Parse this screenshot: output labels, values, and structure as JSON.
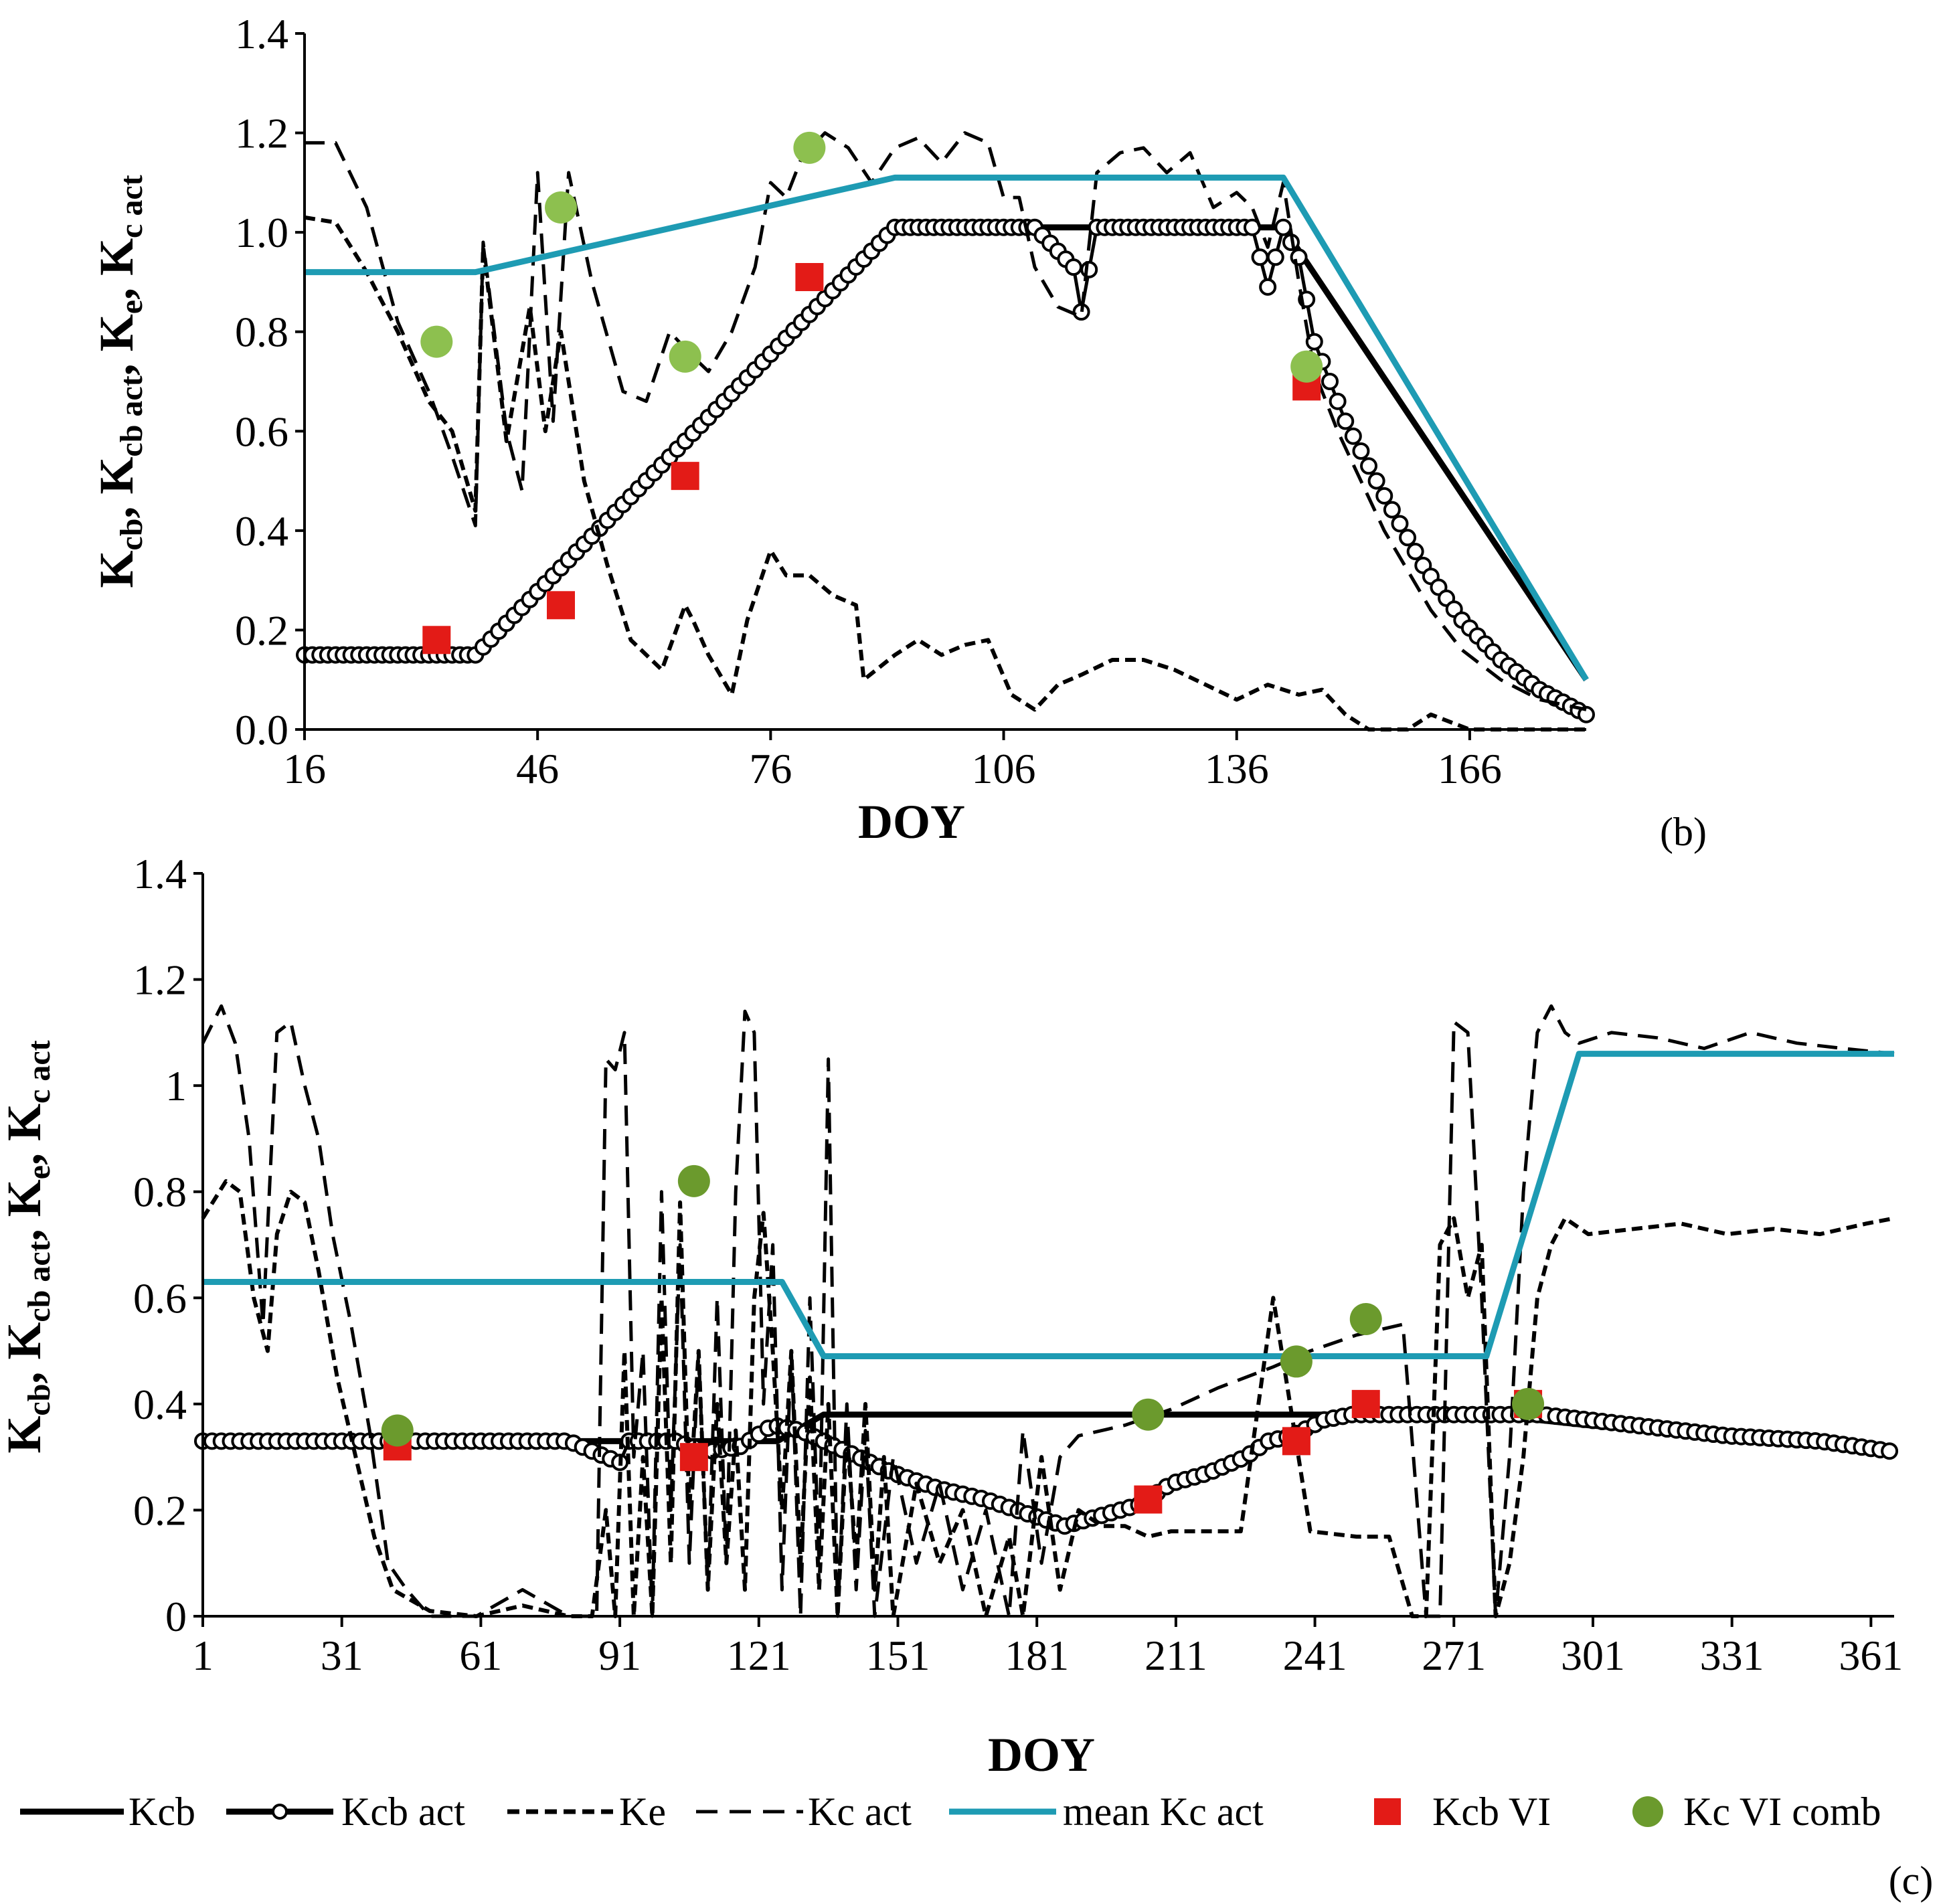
{
  "colors": {
    "axis": "#000000",
    "kcb": "#000000",
    "mean": "#1E9BB3",
    "kcb_vi": "#E31B17",
    "kc_vi_top": "#8DC04F",
    "kc_vi_bottom": "#6B9A2D"
  },
  "legend": {
    "kcb": "Kcb",
    "kcb_act": "Kcb act",
    "ke": "Ke",
    "kc_act": "Kc act",
    "mean": "mean Kc act",
    "kcb_vi": "Kcb VI",
    "kc_vi": "Kc VI comb"
  },
  "panels": {
    "b": {
      "label": "(b)",
      "xlabel": "DOY",
      "ylabel": {
        "base": "K",
        "s1": "cb",
        "s2": "cb act",
        "s3": "e",
        "s4": "c act"
      }
    },
    "c": {
      "label": "(c)",
      "xlabel": "DOY",
      "ylabel": {
        "base": "K",
        "s1": "cb",
        "s2": "cb act",
        "s3": "e",
        "s4": "c act"
      }
    }
  },
  "chart_data": [
    {
      "type": "line",
      "panel": "(b)",
      "xlabel": "DOY",
      "ylabel": "Kcb, Kcb act, Ke, Kc act",
      "xlim": [
        16,
        181
      ],
      "ylim": [
        0,
        1.4
      ],
      "xticks": [
        "16",
        "46",
        "76",
        "106",
        "136",
        "166"
      ],
      "yticks": [
        "0.0",
        "0.2",
        "0.4",
        "0.6",
        "0.8",
        "1.0",
        "1.2",
        "1.4"
      ],
      "series": [
        {
          "name": "Kcb",
          "x": [
            16,
            38,
            92,
            142,
            181
          ],
          "y": [
            0.15,
            0.15,
            1.01,
            1.01,
            0.1
          ]
        },
        {
          "name": "Kcb act",
          "x": [
            16,
            38,
            92,
            110,
            115,
            116,
            118,
            128,
            138,
            140,
            142,
            144,
            146,
            150,
            155,
            160,
            165,
            170,
            175,
            181
          ],
          "y": [
            0.15,
            0.15,
            1.01,
            1.01,
            0.93,
            0.84,
            1.01,
            1.01,
            1.01,
            0.89,
            1.01,
            0.95,
            0.78,
            0.62,
            0.47,
            0.33,
            0.22,
            0.14,
            0.08,
            0.03
          ]
        },
        {
          "name": "Ke",
          "x": [
            16,
            20,
            24,
            28,
            32,
            35,
            38,
            39,
            42,
            45,
            47,
            49,
            52,
            55,
            58,
            62,
            65,
            66,
            68,
            71,
            73,
            76,
            78,
            81,
            84,
            87,
            88,
            92,
            95,
            98,
            101,
            104,
            107,
            110,
            113,
            116,
            120,
            124,
            128,
            132,
            136,
            140,
            144,
            147,
            150,
            153,
            158,
            161,
            166,
            171,
            181
          ],
          "y": [
            1.03,
            1.02,
            0.92,
            0.8,
            0.66,
            0.6,
            0.44,
            0.97,
            0.58,
            0.85,
            0.6,
            0.8,
            0.5,
            0.33,
            0.18,
            0.12,
            0.25,
            0.22,
            0.15,
            0.07,
            0.22,
            0.36,
            0.31,
            0.31,
            0.27,
            0.25,
            0.1,
            0.15,
            0.18,
            0.15,
            0.17,
            0.18,
            0.07,
            0.04,
            0.09,
            0.11,
            0.14,
            0.14,
            0.12,
            0.09,
            0.06,
            0.09,
            0.07,
            0.08,
            0.03,
            0.0,
            0.0,
            0.03,
            0.0,
            0.0,
            0.0
          ]
        },
        {
          "name": "Kc act",
          "x": [
            16,
            20,
            24,
            28,
            32,
            35,
            38,
            39,
            42,
            44,
            46,
            48,
            50,
            53,
            57,
            60,
            63,
            66,
            68,
            71,
            74,
            76,
            78,
            80,
            83,
            86,
            89,
            92,
            95,
            98,
            101,
            104,
            106,
            108,
            110,
            113,
            116,
            118,
            121,
            124,
            127,
            130,
            133,
            136,
            138,
            140,
            142,
            144,
            146,
            149,
            152,
            155,
            158,
            161,
            165,
            170,
            175,
            181
          ],
          "y": [
            1.18,
            1.18,
            1.05,
            0.82,
            0.68,
            0.55,
            0.41,
            0.98,
            0.6,
            0.48,
            1.12,
            0.62,
            1.12,
            0.9,
            0.68,
            0.66,
            0.8,
            0.75,
            0.72,
            0.8,
            0.93,
            1.1,
            1.07,
            1.15,
            1.2,
            1.17,
            1.1,
            1.17,
            1.19,
            1.14,
            1.2,
            1.18,
            1.07,
            1.07,
            0.93,
            0.85,
            0.83,
            1.12,
            1.16,
            1.17,
            1.12,
            1.16,
            1.05,
            1.08,
            1.05,
            0.97,
            1.1,
            0.9,
            0.72,
            0.6,
            0.5,
            0.4,
            0.32,
            0.24,
            0.16,
            0.1,
            0.06,
            0.04
          ]
        },
        {
          "name": "mean Kc act",
          "x": [
            16,
            38,
            92,
            142,
            181
          ],
          "y": [
            0.92,
            0.92,
            1.11,
            1.11,
            0.1
          ]
        },
        {
          "name": "Kcb VI",
          "x": [
            33,
            49,
            65,
            81,
            145
          ],
          "y": [
            0.18,
            0.25,
            0.51,
            0.91,
            0.69
          ]
        },
        {
          "name": "Kc VI comb",
          "x": [
            33,
            49,
            65,
            81,
            145
          ],
          "y": [
            0.78,
            1.05,
            0.75,
            1.17,
            0.73
          ]
        }
      ]
    },
    {
      "type": "line",
      "panel": "(c)",
      "xlabel": "DOY",
      "ylabel": "Kcb, Kcb act, Ke, Kc act",
      "xlim": [
        1,
        366
      ],
      "ylim": [
        0,
        1.4
      ],
      "xticks": [
        "1",
        "31",
        "61",
        "91",
        "121",
        "151",
        "181",
        "211",
        "241",
        "271",
        "301",
        "331",
        "361"
      ],
      "yticks": [
        "0",
        "0.2",
        "0.4",
        "0.6",
        "0.8",
        "1",
        "1.2",
        "1.4"
      ],
      "series": [
        {
          "name": "Kcb",
          "x": [
            1,
            125,
            135,
            278,
            300,
            366
          ],
          "y": [
            0.33,
            0.33,
            0.38,
            0.38,
            0.36,
            0.31
          ]
        },
        {
          "name": "Kcb act",
          "x": [
            1,
            80,
            88,
            91,
            93,
            103,
            110,
            117,
            124,
            130,
            140,
            150,
            160,
            170,
            180,
            187,
            195,
            203,
            210,
            218,
            226,
            231,
            236,
            243,
            249,
            260,
            290,
            310,
            330,
            350,
            366
          ],
          "y": [
            0.33,
            0.33,
            0.3,
            0.29,
            0.33,
            0.33,
            0.31,
            0.32,
            0.36,
            0.35,
            0.31,
            0.27,
            0.24,
            0.22,
            0.19,
            0.17,
            0.19,
            0.21,
            0.25,
            0.27,
            0.3,
            0.33,
            0.34,
            0.37,
            0.38,
            0.38,
            0.38,
            0.36,
            0.34,
            0.33,
            0.31
          ]
        },
        {
          "name": "Ke",
          "x": [
            1,
            6,
            9,
            12,
            15,
            17,
            20,
            23,
            26,
            30,
            34,
            38,
            42,
            50,
            60,
            70,
            80,
            85,
            88,
            90,
            92,
            94,
            96,
            98,
            100,
            102,
            104,
            106,
            108,
            110,
            112,
            114,
            116,
            118,
            120,
            122,
            124,
            126,
            128,
            130,
            132,
            134,
            136,
            138,
            140,
            142,
            144,
            146,
            148,
            150,
            155,
            160,
            165,
            170,
            175,
            178,
            182,
            186,
            190,
            195,
            200,
            205,
            210,
            215,
            225,
            232,
            240,
            250,
            257,
            262,
            265,
            268,
            271,
            274,
            277,
            280,
            283,
            286,
            289,
            292,
            295,
            300,
            310,
            320,
            330,
            340,
            350,
            360,
            366
          ],
          "y": [
            0.75,
            0.82,
            0.8,
            0.6,
            0.5,
            0.72,
            0.8,
            0.78,
            0.65,
            0.45,
            0.3,
            0.15,
            0.05,
            0.01,
            0.0,
            0.02,
            0.0,
            0.0,
            0.2,
            0.0,
            0.5,
            0.0,
            0.3,
            0.0,
            0.6,
            0.1,
            0.78,
            0.2,
            0.5,
            0.05,
            0.4,
            0.1,
            0.35,
            0.05,
            0.6,
            0.76,
            0.5,
            0.2,
            0.5,
            0.1,
            0.45,
            0.05,
            0.4,
            0.0,
            0.35,
            0.1,
            0.4,
            0.05,
            0.3,
            0.0,
            0.25,
            0.1,
            0.2,
            0.0,
            0.15,
            0.0,
            0.3,
            0.05,
            0.2,
            0.17,
            0.17,
            0.15,
            0.16,
            0.16,
            0.16,
            0.6,
            0.16,
            0.15,
            0.15,
            0.0,
            0.0,
            0.7,
            0.75,
            0.6,
            0.7,
            0.0,
            0.1,
            0.3,
            0.6,
            0.7,
            0.75,
            0.72,
            0.73,
            0.74,
            0.72,
            0.73,
            0.72,
            0.74,
            0.75
          ]
        },
        {
          "name": "Kc act",
          "x": [
            1,
            5,
            8,
            11,
            14,
            17,
            20,
            23,
            26,
            29,
            33,
            37,
            41,
            45,
            50,
            55,
            60,
            70,
            80,
            86,
            88,
            90,
            92,
            94,
            96,
            98,
            100,
            102,
            104,
            106,
            108,
            110,
            112,
            114,
            116,
            118,
            120,
            122,
            124,
            126,
            128,
            130,
            132,
            134,
            136,
            138,
            140,
            142,
            144,
            146,
            150,
            155,
            160,
            165,
            170,
            175,
            178,
            182,
            186,
            190,
            200,
            210,
            220,
            232,
            240,
            250,
            260,
            265,
            268,
            271,
            274,
            277,
            280,
            283,
            286,
            289,
            292,
            295,
            298,
            305,
            315,
            325,
            335,
            345,
            355,
            366
          ],
          "y": [
            1.08,
            1.15,
            1.08,
            0.9,
            0.55,
            1.1,
            1.12,
            1.0,
            0.9,
            0.72,
            0.55,
            0.35,
            0.1,
            0.05,
            0.0,
            0.0,
            0.0,
            0.05,
            0.0,
            0.0,
            1.05,
            1.03,
            1.1,
            0.3,
            0.5,
            0.0,
            0.8,
            0.2,
            0.7,
            0.1,
            0.5,
            0.05,
            0.6,
            0.1,
            0.8,
            1.14,
            1.1,
            0.4,
            0.7,
            0.05,
            0.5,
            0.0,
            0.6,
            0.1,
            1.05,
            0.0,
            0.4,
            0.05,
            0.35,
            0.0,
            0.3,
            0.1,
            0.25,
            0.05,
            0.2,
            0.0,
            0.35,
            0.1,
            0.3,
            0.34,
            0.36,
            0.39,
            0.43,
            0.47,
            0.5,
            0.53,
            0.55,
            0.0,
            0.0,
            1.12,
            1.1,
            0.6,
            0.0,
            0.3,
            0.8,
            1.1,
            1.15,
            1.1,
            1.08,
            1.1,
            1.09,
            1.07,
            1.1,
            1.08,
            1.07,
            1.06
          ]
        },
        {
          "name": "mean Kc act",
          "x": [
            1,
            126,
            135,
            278,
            298,
            366
          ],
          "y": [
            0.63,
            0.63,
            0.49,
            0.49,
            1.06,
            1.06
          ]
        },
        {
          "name": "Kcb VI",
          "x": [
            43,
            107,
            205,
            237,
            252,
            287
          ],
          "y": [
            0.32,
            0.3,
            0.22,
            0.33,
            0.4,
            0.4
          ]
        },
        {
          "name": "Kc VI comb",
          "x": [
            43,
            107,
            205,
            237,
            252,
            287
          ],
          "y": [
            0.35,
            0.82,
            0.38,
            0.48,
            0.56,
            0.4
          ]
        }
      ]
    }
  ]
}
